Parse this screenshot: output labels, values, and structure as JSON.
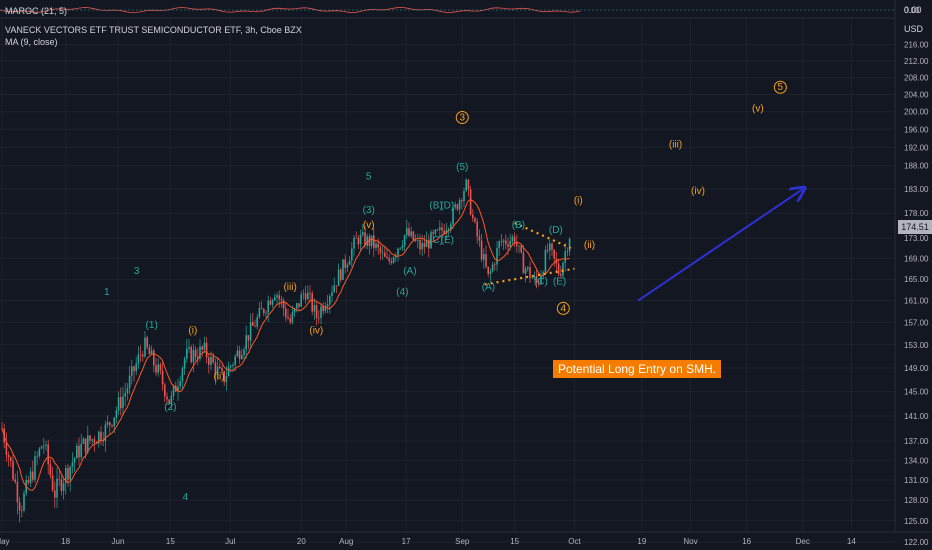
{
  "indicator_panel": {
    "label": "MAROC (21, 5)",
    "scale_value": "0.00"
  },
  "main_panel": {
    "symbol_title": "VANECK VECTORS ETF TRUST SEMICONDUCTOR ETF, 3h, Cboe BZX",
    "ma_label": "MA (9, close)",
    "currency": "USD",
    "last_price": "174.51"
  },
  "callout": "Potential Long Entry on SMH.",
  "colors": {
    "background": "#131722",
    "up_candle": "#26a69a",
    "down_candle": "#ef5350",
    "ma_line": "#ff5722",
    "wave_primary": "#26a69a",
    "wave_minor": "#f7a21b",
    "arrow": "#2e31d6",
    "callout_bg": "#f57c00"
  },
  "chart_data": {
    "type": "candlestick",
    "interval": "3h",
    "y_ticks": [
      0.0,
      216.0,
      212.0,
      208.0,
      204.0,
      200.0,
      196.0,
      192.0,
      188.0,
      183.0,
      178.0,
      173.0,
      169.0,
      165.0,
      161.0,
      157.0,
      153.0,
      149.0,
      145.0,
      141.0,
      137.0,
      134.0,
      131.0,
      128.0,
      125.0,
      122.0
    ],
    "x_ticks": [
      "May",
      "18",
      "Jun",
      "15",
      "Jul",
      "20",
      "Aug",
      "17",
      "Sep",
      "15",
      "Oct",
      "19",
      "Nov",
      "16",
      "Dec",
      "14"
    ],
    "ylim": [
      122,
      216
    ],
    "log_scale": true,
    "grid": true,
    "price_path": [
      {
        "x": "May 1",
        "y": 139
      },
      {
        "x": "May 6",
        "y": 127
      },
      {
        "x": "May 12",
        "y": 137
      },
      {
        "x": "May 15",
        "y": 129
      },
      {
        "x": "May 22",
        "y": 136
      },
      {
        "x": "May 29",
        "y": 139
      },
      {
        "x": "Jun 3",
        "y": 145
      },
      {
        "x": "Jun 8",
        "y": 153
      },
      {
        "x": "Jun 12",
        "y": 148
      },
      {
        "x": "Jun 15",
        "y": 143
      },
      {
        "x": "Jun 19",
        "y": 151
      },
      {
        "x": "Jun 24",
        "y": 152
      },
      {
        "x": "Jun 29",
        "y": 147
      },
      {
        "x": "Jul 6",
        "y": 155
      },
      {
        "x": "Jul 13",
        "y": 163
      },
      {
        "x": "Jul 17",
        "y": 157
      },
      {
        "x": "Jul 21",
        "y": 163
      },
      {
        "x": "Jul 24",
        "y": 158
      },
      {
        "x": "Jul 31",
        "y": 167
      },
      {
        "x": "Aug 4",
        "y": 173
      },
      {
        "x": "Aug 8",
        "y": 172
      },
      {
        "x": "Aug 12",
        "y": 168
      },
      {
        "x": "Aug 17",
        "y": 174
      },
      {
        "x": "Aug 21",
        "y": 171
      },
      {
        "x": "Aug 26",
        "y": 174
      },
      {
        "x": "Aug 29",
        "y": 177
      },
      {
        "x": "Sep 2",
        "y": 184
      },
      {
        "x": "Sep 4",
        "y": 176
      },
      {
        "x": "Sep 8",
        "y": 165
      },
      {
        "x": "Sep 11",
        "y": 172
      },
      {
        "x": "Sep 15",
        "y": 173
      },
      {
        "x": "Sep 17",
        "y": 168
      },
      {
        "x": "Sep 21",
        "y": 164
      },
      {
        "x": "Sep 24",
        "y": 171
      },
      {
        "x": "Sep 27",
        "y": 166
      },
      {
        "x": "Sep 30",
        "y": 174.51
      }
    ],
    "wave_labels": [
      {
        "text": "1",
        "x": "May 29",
        "y": 162,
        "style": "minor-plain",
        "color": "primary"
      },
      {
        "text": "(1)",
        "x": "Jun 10",
        "y": 156,
        "style": "plain",
        "color": "primary"
      },
      {
        "text": "(2)",
        "x": "Jun 15",
        "y": 142,
        "style": "plain",
        "color": "primary"
      },
      {
        "text": "(i)",
        "x": "Jun 21",
        "y": 155,
        "style": "plain",
        "color": "minor"
      },
      {
        "text": "(ii)",
        "x": "Jun 28",
        "y": 147,
        "style": "plain",
        "color": "minor"
      },
      {
        "text": "(iii)",
        "x": "Jul 17",
        "y": 163,
        "style": "plain",
        "color": "minor"
      },
      {
        "text": "(iv)",
        "x": "Jul 24",
        "y": 155,
        "style": "plain",
        "color": "minor"
      },
      {
        "text": "(v)",
        "x": "Aug 7",
        "y": 175,
        "style": "plain",
        "color": "minor"
      },
      {
        "text": "(3)",
        "x": "Aug 7",
        "y": 178,
        "style": "plain",
        "color": "primary"
      },
      {
        "text": "3",
        "x": "Jun 6",
        "y": 166,
        "style": "plain",
        "color": "primary"
      },
      {
        "text": "5",
        "x": "Aug 7",
        "y": 185,
        "style": "plain",
        "color": "primary"
      },
      {
        "text": "4",
        "x": "Jun 19",
        "y": 128,
        "style": "plain",
        "color": "primary"
      },
      {
        "text": "(4)",
        "x": "Aug 16",
        "y": 162,
        "style": "plain",
        "color": "primary"
      },
      {
        "text": "(A)",
        "x": "Aug 18",
        "y": 166,
        "style": "plain",
        "color": "primary"
      },
      {
        "text": "(B)",
        "x": "Aug 25",
        "y": 179,
        "style": "plain",
        "color": "primary"
      },
      {
        "text": "(C)",
        "x": "Aug 25",
        "y": 172,
        "style": "plain",
        "color": "primary"
      },
      {
        "text": "(D)",
        "x": "Aug 28",
        "y": 179,
        "style": "plain",
        "color": "primary"
      },
      {
        "text": "(E)",
        "x": "Aug 28",
        "y": 172,
        "style": "plain",
        "color": "primary"
      },
      {
        "text": "(5)",
        "x": "Sep 1",
        "y": 187,
        "style": "plain",
        "color": "primary"
      },
      {
        "text": "3",
        "x": "Sep 1",
        "y": 198,
        "style": "circled",
        "color": "minor"
      },
      {
        "text": "(A)",
        "x": "Sep 8",
        "y": 163,
        "style": "plain",
        "color": "primary"
      },
      {
        "text": "(B)",
        "x": "Sep 16",
        "y": 175,
        "style": "plain",
        "color": "primary"
      },
      {
        "text": "(C)",
        "x": "Sep 22",
        "y": 164,
        "style": "plain",
        "color": "primary"
      },
      {
        "text": "(D)",
        "x": "Sep 26",
        "y": 174,
        "style": "plain",
        "color": "primary"
      },
      {
        "text": "(E)",
        "x": "Sep 27",
        "y": 164,
        "style": "plain",
        "color": "primary"
      },
      {
        "text": "4",
        "x": "Sep 28",
        "y": 159,
        "style": "circled",
        "color": "minor"
      },
      {
        "text": "(i)",
        "x": "Oct 2",
        "y": 180,
        "style": "plain",
        "color": "minor"
      },
      {
        "text": "(ii)",
        "x": "Oct 5",
        "y": 171,
        "style": "plain",
        "color": "minor"
      },
      {
        "text": "(iii)",
        "x": "Oct 28",
        "y": 192,
        "style": "plain",
        "color": "minor"
      },
      {
        "text": "(iv)",
        "x": "Nov 3",
        "y": 182,
        "style": "plain",
        "color": "minor"
      },
      {
        "text": "(v)",
        "x": "Nov 19",
        "y": 200,
        "style": "plain",
        "color": "minor"
      },
      {
        "text": "5",
        "x": "Nov 25",
        "y": 205,
        "style": "circled",
        "color": "minor"
      }
    ],
    "trendlines": [
      {
        "from": {
          "x": "Sep 15",
          "y": 176
        },
        "to": {
          "x": "Sep 30",
          "y": 171
        },
        "style": "dotted",
        "color": "minor"
      },
      {
        "from": {
          "x": "Sep 7",
          "y": 164
        },
        "to": {
          "x": "Oct 1",
          "y": 167
        },
        "style": "dotted",
        "color": "minor"
      },
      {
        "from": {
          "x": "Oct 18",
          "y": 161
        },
        "to": {
          "x": "Dec 1",
          "y": 183
        },
        "style": "arrow",
        "color": "arrow"
      }
    ]
  }
}
